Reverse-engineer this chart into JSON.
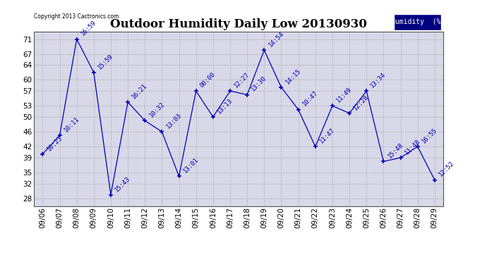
{
  "title": "Outdoor Humidity Daily Low 20130930",
  "copyright": "Copyright 2013 Cactronics.com",
  "legend_label": "Humidity  (%)",
  "dates": [
    "09/06",
    "09/07",
    "09/08",
    "09/09",
    "09/10",
    "09/11",
    "09/12",
    "09/13",
    "09/14",
    "09/15",
    "09/16",
    "09/17",
    "09/18",
    "09/19",
    "09/20",
    "09/21",
    "09/22",
    "09/23",
    "09/24",
    "09/25",
    "09/26",
    "09/27",
    "09/28",
    "09/29"
  ],
  "values": [
    40,
    45,
    71,
    62,
    29,
    54,
    49,
    46,
    34,
    57,
    50,
    57,
    56,
    68,
    58,
    52,
    42,
    53,
    51,
    57,
    38,
    39,
    42,
    33
  ],
  "times": [
    "10:23",
    "10:11",
    "16:59",
    "15:59",
    "15:43",
    "16:21",
    "10:32",
    "13:03",
    "13:01",
    "00:00",
    "13:13",
    "12:27",
    "13:30",
    "14:54",
    "14:15",
    "10:47",
    "11:47",
    "11:49",
    "12:28",
    "13:34",
    "15:48",
    "11:48",
    "16:55",
    "12:52"
  ],
  "line_color": "#0000bb",
  "marker_color": "#0000bb",
  "figure_bg_color": "#ffffff",
  "plot_bg_color": "#d8d8e8",
  "grid_color": "#aaaaaa",
  "yticks": [
    28,
    32,
    35,
    39,
    42,
    46,
    50,
    53,
    57,
    60,
    64,
    67,
    71
  ],
  "ylim": [
    26,
    73
  ],
  "title_fontsize": 12,
  "label_fontsize": 6.5,
  "tick_fontsize": 7.5
}
